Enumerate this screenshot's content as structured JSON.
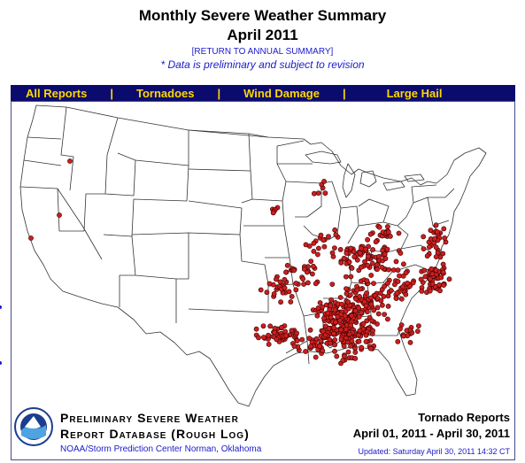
{
  "header": {
    "title": "Monthly Severe Weather Summary",
    "subtitle": "April 2011",
    "return_link": "[RETURN TO ANNUAL SUMMARY]",
    "disclaimer": "* Data is preliminary and subject to revision"
  },
  "nav": {
    "items": [
      {
        "label": "All Reports"
      },
      {
        "label": "Tornadoes"
      },
      {
        "label": "Wind Damage"
      },
      {
        "label": "Large Hail"
      }
    ],
    "separator": "|"
  },
  "map": {
    "region": "Contiguous United States",
    "marker_color": "#cc1f1f",
    "marker_outline": "#3a0000",
    "report_count_approx": 800
  },
  "footer": {
    "db_line1": "Preliminary Severe Weather",
    "db_line2": "Report Database (Rough Log)",
    "agency": "NOAA/Storm Prediction Center   Norman, Oklahoma",
    "report_type": "Tornado Reports",
    "date_range": "April 01, 2011 - April 30, 2011",
    "updated": "Updated:  Saturday  April 30, 2011  14:32 CT",
    "logo_text": "NOAA"
  },
  "colors": {
    "nav_bg": "#0b0b6e",
    "nav_text": "#ffd700",
    "link_blue": "#1a1acc"
  }
}
